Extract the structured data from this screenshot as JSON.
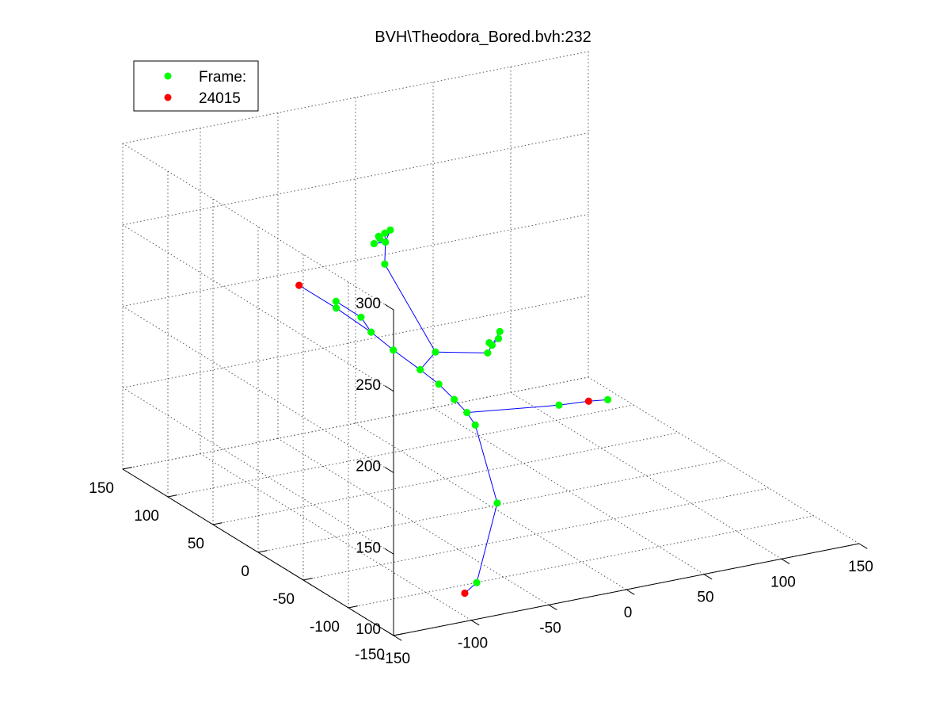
{
  "chart_data": {
    "type": "scatter",
    "projection": "3d",
    "title": "BVH\\Theodora_Bored.bvh:232",
    "xlabel": "",
    "ylabel": "",
    "zlabel": "",
    "xlim": [
      -150,
      150
    ],
    "ylim": [
      -150,
      150
    ],
    "zlim": [
      100,
      300
    ],
    "x_ticks": [
      -150,
      -100,
      -50,
      0,
      50,
      100,
      150
    ],
    "y_ticks": [
      -150,
      -100,
      -50,
      0,
      50,
      100,
      150
    ],
    "z_ticks": [
      100,
      150,
      200,
      250,
      300
    ],
    "grid": true,
    "legend": {
      "position": "top-left",
      "entries": [
        {
          "label": "Frame:",
          "color": "#00ff00"
        },
        {
          "label": "24015",
          "color": "#ff0000"
        }
      ]
    },
    "colors": {
      "joint": "#00ff00",
      "end_effector": "#ff0000",
      "bone": "#0000ff",
      "grid": "#555555"
    },
    "joints": [
      {
        "x": -13,
        "y": -5,
        "z": 154.1,
        "end": false
      },
      {
        "x": 0,
        "y": -7,
        "z": 104.4,
        "end": false
      },
      {
        "x": -15,
        "y": -10,
        "z": 59.4,
        "end": false
      },
      {
        "x": -25,
        "y": -14,
        "z": 56.2,
        "end": true
      },
      {
        "x": -12,
        "y": 6,
        "z": 157.8,
        "end": false
      },
      {
        "x": 45,
        "y": 2,
        "z": 153.0,
        "end": false
      },
      {
        "x": 74,
        "y": 19,
        "z": 144.2,
        "end": true
      },
      {
        "x": 84,
        "y": 15,
        "z": 144.6,
        "end": false
      },
      {
        "x": -12,
        "y": 20,
        "z": 161.1,
        "end": false
      },
      {
        "x": -15,
        "y": 32,
        "z": 167.0,
        "end": false
      },
      {
        "x": -20,
        "y": 44,
        "z": 172.7,
        "end": false
      },
      {
        "x": -28,
        "y": 60,
        "z": 180.8,
        "end": false
      },
      {
        "x": -33,
        "y": 76,
        "z": 187.3,
        "end": false
      },
      {
        "x": -45,
        "y": 94,
        "z": 198.2,
        "end": false
      },
      {
        "x": -55,
        "y": 118,
        "z": 205.9,
        "end": true
      },
      {
        "x": -36,
        "y": 82,
        "z": 195.0,
        "end": false
      },
      {
        "x": -44,
        "y": 96,
        "z": 201.5,
        "end": false
      },
      {
        "x": -9,
        "y": 46,
        "z": 180.8,
        "end": false
      },
      {
        "x": 13,
        "y": 26,
        "z": 182.9,
        "end": false
      },
      {
        "x": 17,
        "y": 28,
        "z": 186.2,
        "end": false
      },
      {
        "x": 14,
        "y": 26,
        "z": 189.0,
        "end": false
      },
      {
        "x": 20,
        "y": 26,
        "z": 190.4,
        "end": false
      },
      {
        "x": 22,
        "y": 28,
        "z": 193.7,
        "end": false
      },
      {
        "x": -19,
        "y": 85,
        "z": 223.4,
        "end": false
      },
      {
        "x": -11,
        "y": 98,
        "z": 231.0,
        "end": false
      },
      {
        "x": -14,
        "y": 99,
        "z": 233.4,
        "end": false
      },
      {
        "x": -16,
        "y": 97,
        "z": 235.8,
        "end": false
      },
      {
        "x": -12,
        "y": 97,
        "z": 237.0,
        "end": false
      },
      {
        "x": -9,
        "y": 96,
        "z": 238.7,
        "end": false
      },
      {
        "x": -16,
        "y": 102,
        "z": 229.6,
        "end": false
      }
    ],
    "bones": [
      [
        0,
        1
      ],
      [
        1,
        2
      ],
      [
        2,
        3
      ],
      [
        0,
        4
      ],
      [
        4,
        5
      ],
      [
        5,
        6
      ],
      [
        6,
        7
      ],
      [
        4,
        8
      ],
      [
        8,
        9
      ],
      [
        9,
        10
      ],
      [
        10,
        11
      ],
      [
        11,
        12
      ],
      [
        12,
        13
      ],
      [
        13,
        14
      ],
      [
        12,
        15
      ],
      [
        15,
        16
      ],
      [
        10,
        17
      ],
      [
        17,
        18
      ],
      [
        18,
        19
      ],
      [
        19,
        20
      ],
      [
        19,
        21
      ],
      [
        19,
        22
      ],
      [
        17,
        23
      ],
      [
        23,
        24
      ],
      [
        24,
        25
      ],
      [
        24,
        26
      ],
      [
        24,
        27
      ],
      [
        24,
        28
      ],
      [
        24,
        29
      ]
    ]
  }
}
